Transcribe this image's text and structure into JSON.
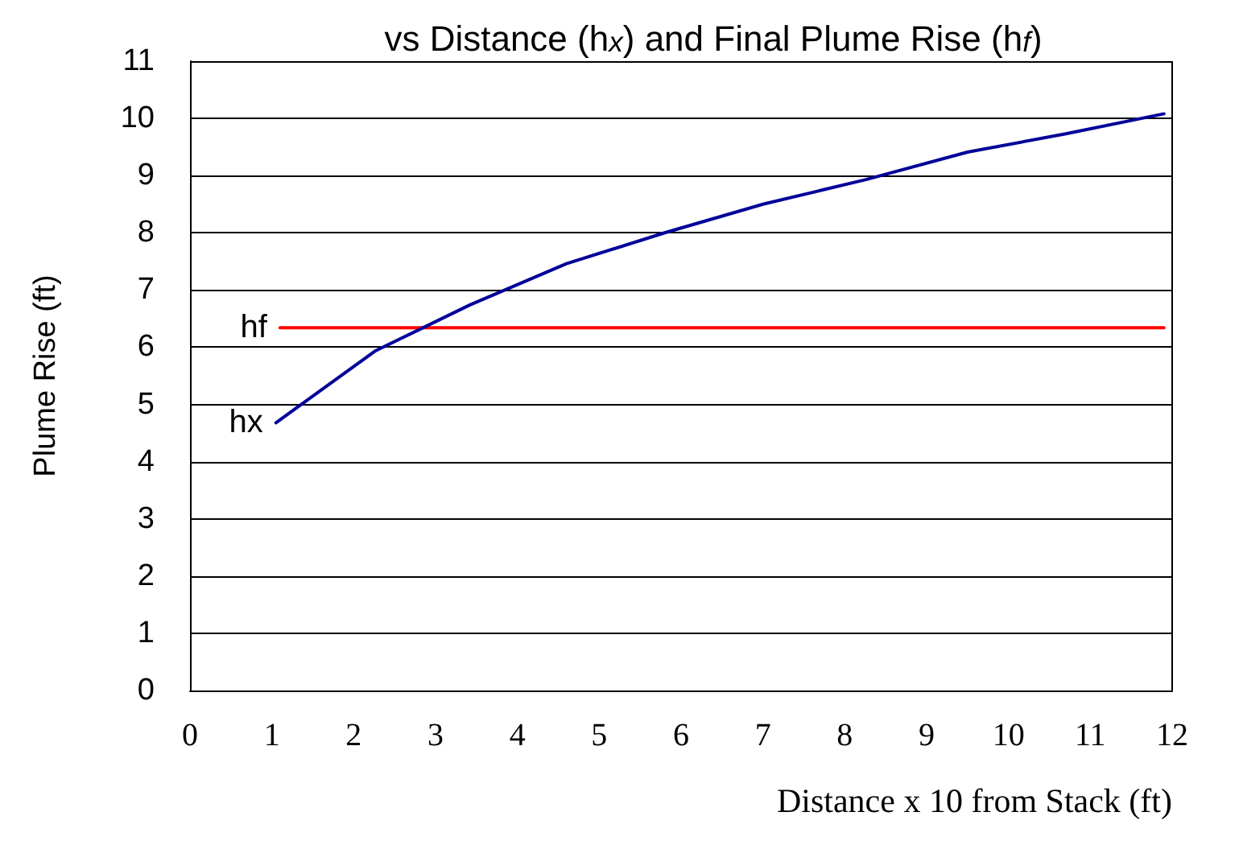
{
  "chart_data": {
    "type": "line",
    "title": "vs Distance (h$_{x}$) and Final Plume Rise (h$_{f}$)",
    "xlabel": "Distance x 10 from Stack (ft)",
    "ylabel": "Plume Rise (ft)",
    "xlim": [
      0,
      12
    ],
    "xticks": [
      0,
      1,
      2,
      3,
      4,
      5,
      6,
      7,
      8,
      9,
      10,
      11,
      12
    ],
    "ylim": [
      0,
      11
    ],
    "yticks": [
      0,
      1,
      2,
      3,
      4,
      5,
      6,
      7,
      8,
      9,
      10,
      11
    ],
    "grid": "y",
    "legend": false,
    "marker": "none",
    "line_style": "solid",
    "series": [
      {
        "name": "hf",
        "color": "#ff0000",
        "x": [
          1.1,
          11.9
        ],
        "values": [
          6.34,
          6.34
        ]
      },
      {
        "name": "hx",
        "color": "#000099",
        "x": [
          1.05,
          2.27,
          3.42,
          4.6,
          5.8,
          7.0,
          8.26,
          9.5,
          10.7,
          11.9
        ],
        "values": [
          4.68,
          5.94,
          6.74,
          7.46,
          8.0,
          8.5,
          8.93,
          9.41,
          9.73,
          10.08
        ]
      }
    ]
  }
}
